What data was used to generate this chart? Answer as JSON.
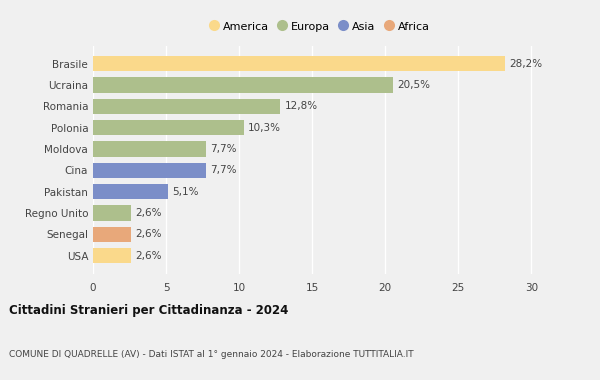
{
  "countries": [
    "Brasile",
    "Ucraina",
    "Romania",
    "Polonia",
    "Moldova",
    "Cina",
    "Pakistan",
    "Regno Unito",
    "Senegal",
    "USA"
  ],
  "values": [
    28.2,
    20.5,
    12.8,
    10.3,
    7.7,
    7.7,
    5.1,
    2.6,
    2.6,
    2.6
  ],
  "labels": [
    "28,2%",
    "20,5%",
    "12,8%",
    "10,3%",
    "7,7%",
    "7,7%",
    "5,1%",
    "2,6%",
    "2,6%",
    "2,6%"
  ],
  "colors": [
    "#FAD98B",
    "#ADBF8C",
    "#ADBF8C",
    "#ADBF8C",
    "#ADBF8C",
    "#7B8EC8",
    "#7B8EC8",
    "#ADBF8C",
    "#E8A87A",
    "#FAD98B"
  ],
  "legend_labels": [
    "America",
    "Europa",
    "Asia",
    "Africa"
  ],
  "legend_colors": [
    "#FAD98B",
    "#ADBF8C",
    "#7B8EC8",
    "#E8A87A"
  ],
  "title": "Cittadini Stranieri per Cittadinanza - 2024",
  "subtitle": "COMUNE DI QUADRELLE (AV) - Dati ISTAT al 1° gennaio 2024 - Elaborazione TUTTITALIA.IT",
  "xlim": [
    0,
    31
  ],
  "xticks": [
    0,
    5,
    10,
    15,
    20,
    25,
    30
  ],
  "bg_color": "#f0f0f0",
  "grid_color": "#ffffff",
  "label_fontsize": 7.5,
  "tick_fontsize": 7.5,
  "bar_height": 0.72
}
